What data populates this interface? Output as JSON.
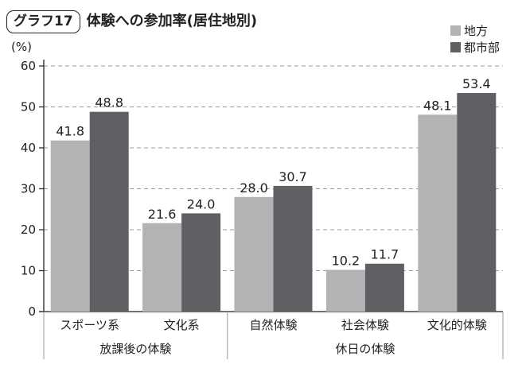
{
  "header": {
    "badge": "グラフ17",
    "title": "体験への参加率(居住地別)"
  },
  "colors": {
    "chiho": "#b3b3b6",
    "toshi": "#606064",
    "grid": "#9a9a9a",
    "text": "#222222"
  },
  "chart_data": {
    "type": "bar",
    "title": "体験への参加率(居住地別)",
    "ylabel": "(%)",
    "xlabel": "",
    "ylim": [
      0,
      60
    ],
    "yticks": [
      0,
      10,
      20,
      30,
      40,
      50,
      60
    ],
    "grid": true,
    "legend_position": "top-right",
    "categories": [
      "スポーツ系",
      "文化系",
      "自然体験",
      "社会体験",
      "文化的体験"
    ],
    "groups": [
      {
        "label": "放課後の体験",
        "categories": [
          "スポーツ系",
          "文化系"
        ]
      },
      {
        "label": "休日の体験",
        "categories": [
          "自然体験",
          "社会体験",
          "文化的体験"
        ]
      }
    ],
    "series": [
      {
        "name": "地方",
        "values": [
          41.8,
          21.6,
          28.0,
          10.2,
          48.1
        ]
      },
      {
        "name": "都市部",
        "values": [
          48.8,
          24.0,
          30.7,
          11.7,
          53.4
        ]
      }
    ],
    "value_labels": [
      [
        "41.8",
        "21.6",
        "28.0",
        "10.2",
        "48.1"
      ],
      [
        "48.8",
        "24.0",
        "30.7",
        "11.7",
        "53.4"
      ]
    ]
  }
}
